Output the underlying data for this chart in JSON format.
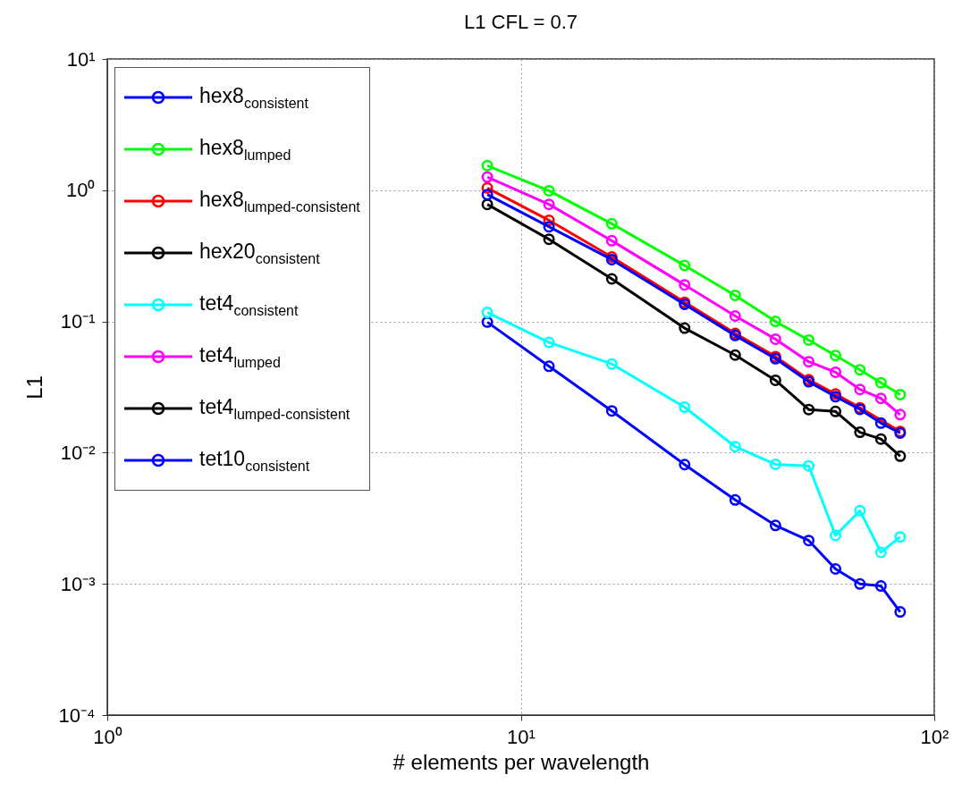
{
  "chart_data": {
    "type": "line",
    "title": "L1 CFL = 0.7",
    "xlabel": "# elements per wavelength",
    "ylabel": "L1",
    "x": [
      8.3,
      11.7,
      16.6,
      24.9,
      33,
      41.3,
      49.7,
      57.7,
      66.1,
      74.3,
      82.7
    ],
    "series": [
      {
        "name": "hex8$_{consistent}$",
        "color": "#0000ff",
        "values": [
          0.0988,
          0.0455,
          0.0208,
          0.00811,
          0.00436,
          0.00279,
          0.00214,
          0.0013,
          0.000998,
          0.000964,
          0.000611
        ]
      },
      {
        "name": "hex8$_{lumped}$",
        "color": "#00ff00",
        "values": [
          1.54,
          0.99,
          0.555,
          0.267,
          0.158,
          0.1,
          0.0721,
          0.055,
          0.0428,
          0.0341,
          0.0277
        ]
      },
      {
        "name": "hex8$_{lumped-consistent}$",
        "color": "#ff0000",
        "values": [
          1.04,
          0.59,
          0.31,
          0.14,
          0.081,
          0.054,
          0.036,
          0.028,
          0.022,
          null,
          0.0145
        ]
      },
      {
        "name": "hex20$_{consistent}$",
        "color": "#000000",
        "values": [
          null,
          null,
          null,
          null,
          null,
          null,
          null,
          null,
          null,
          null,
          null
        ]
      },
      {
        "name": "tet4$_{consistent}$",
        "color": "#00ffff",
        "values": [
          0.117,
          0.0692,
          0.0474,
          0.0222,
          0.0111,
          0.00815,
          0.00793,
          0.00234,
          0.00361,
          0.00174,
          0.00228
        ]
      },
      {
        "name": "tet4$_{lumped}$",
        "color": "#ff00ff",
        "values": [
          1.26,
          0.78,
          0.412,
          0.19,
          0.11,
          0.0733,
          0.0493,
          0.041,
          0.0303,
          0.0259,
          0.0195
        ]
      },
      {
        "name": "tet4$_{lumped-consistent}$",
        "color": "#000000",
        "values": [
          0.78,
          0.423,
          0.211,
          0.0889,
          0.0554,
          0.0356,
          0.0213,
          0.0206,
          0.0143,
          0.0127,
          0.0094
        ]
      },
      {
        "name": "tet10$_{consistent}$",
        "color": "#0000ff",
        "values": [
          0.927,
          0.527,
          0.296,
          0.135,
          0.0781,
          0.052,
          0.0347,
          0.0267,
          0.0214,
          0.0168,
          0.0141
        ]
      }
    ],
    "log": "xy",
    "xlim": [
      1,
      100
    ],
    "ylim": [
      0.0001,
      10
    ],
    "xticks": [
      {
        "value": 1,
        "label": "10⁰"
      },
      {
        "value": 10,
        "label": "10¹"
      },
      {
        "value": 100,
        "label": "10²"
      }
    ],
    "yticks": [
      {
        "value": 0.0001,
        "label": "10⁻⁴"
      },
      {
        "value": 0.001,
        "label": "10⁻³"
      },
      {
        "value": 0.01,
        "label": "10⁻²"
      },
      {
        "value": 0.1,
        "label": "10⁻¹"
      },
      {
        "value": 1,
        "label": "10⁰"
      },
      {
        "value": 10,
        "label": "10¹"
      }
    ],
    "grid": true,
    "legend": "top left",
    "marker": "circle"
  }
}
